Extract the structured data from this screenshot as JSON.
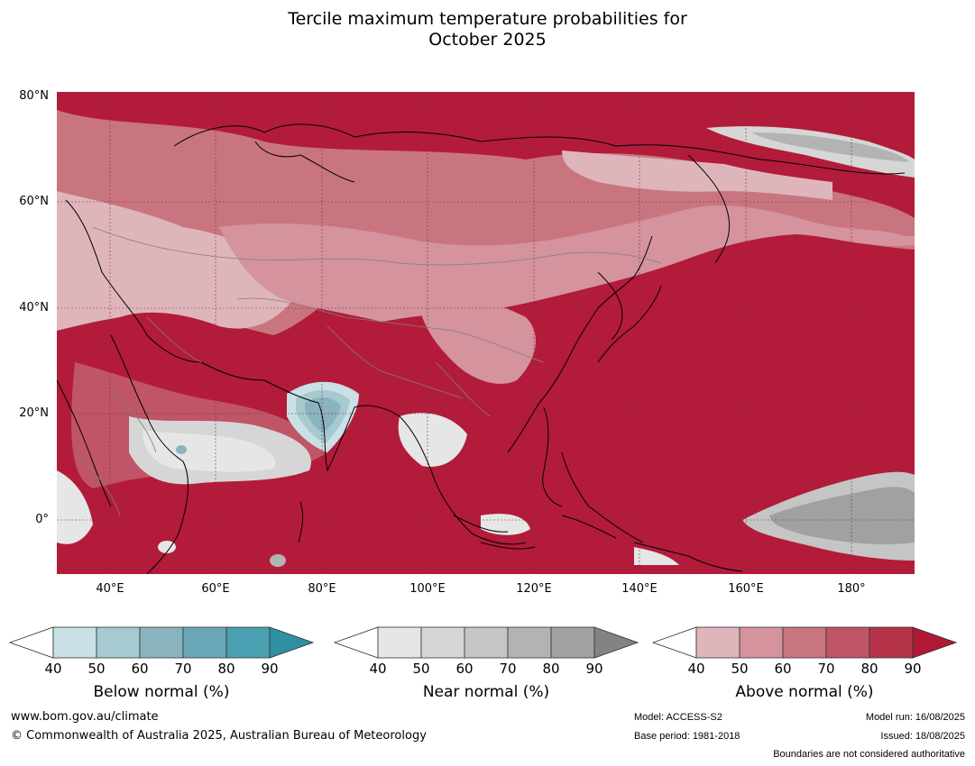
{
  "title": {
    "line1": "Tercile maximum temperature probabilities for",
    "line2": "October 2025"
  },
  "map": {
    "lat_labels": [
      "80°N",
      "60°N",
      "40°N",
      "20°N",
      "0°"
    ],
    "lon_labels": [
      "40°E",
      "60°E",
      "80°E",
      "100°E",
      "120°E",
      "140°E",
      "160°E",
      "180°"
    ],
    "ocean_color": "#b31b3a"
  },
  "colorbars": [
    {
      "title": "Below normal (%)",
      "ticks": [
        "40",
        "50",
        "60",
        "70",
        "80",
        "90"
      ],
      "colors": [
        "#c8e0e6",
        "#a7c9d0",
        "#89b3bf",
        "#6aa8b7",
        "#4a9fb0",
        "#2f8fa3"
      ]
    },
    {
      "title": "Near normal (%)",
      "ticks": [
        "40",
        "50",
        "60",
        "70",
        "80",
        "90"
      ],
      "colors": [
        "#e6e6e6",
        "#d6d6d6",
        "#c5c5c5",
        "#b3b3b3",
        "#a1a1a1",
        "#838383"
      ]
    },
    {
      "title": "Above normal (%)",
      "ticks": [
        "40",
        "50",
        "60",
        "70",
        "80",
        "90"
      ],
      "colors": [
        "#dfb5bc",
        "#d4939d",
        "#c9757f",
        "#bf5566",
        "#b5344a",
        "#b11836"
      ]
    }
  ],
  "footer": {
    "website": "www.bom.gov.au/climate",
    "copyright": "© Commonwealth of Australia 2025, Australian Bureau of Meteorology",
    "model": "Model: ACCESS-S2",
    "base_period": "Base period: 1981-2018",
    "model_run": "Model run: 16/08/2025",
    "issued": "Issued: 18/08/2025",
    "disclaimer": "Boundaries are not considered authoritative"
  }
}
